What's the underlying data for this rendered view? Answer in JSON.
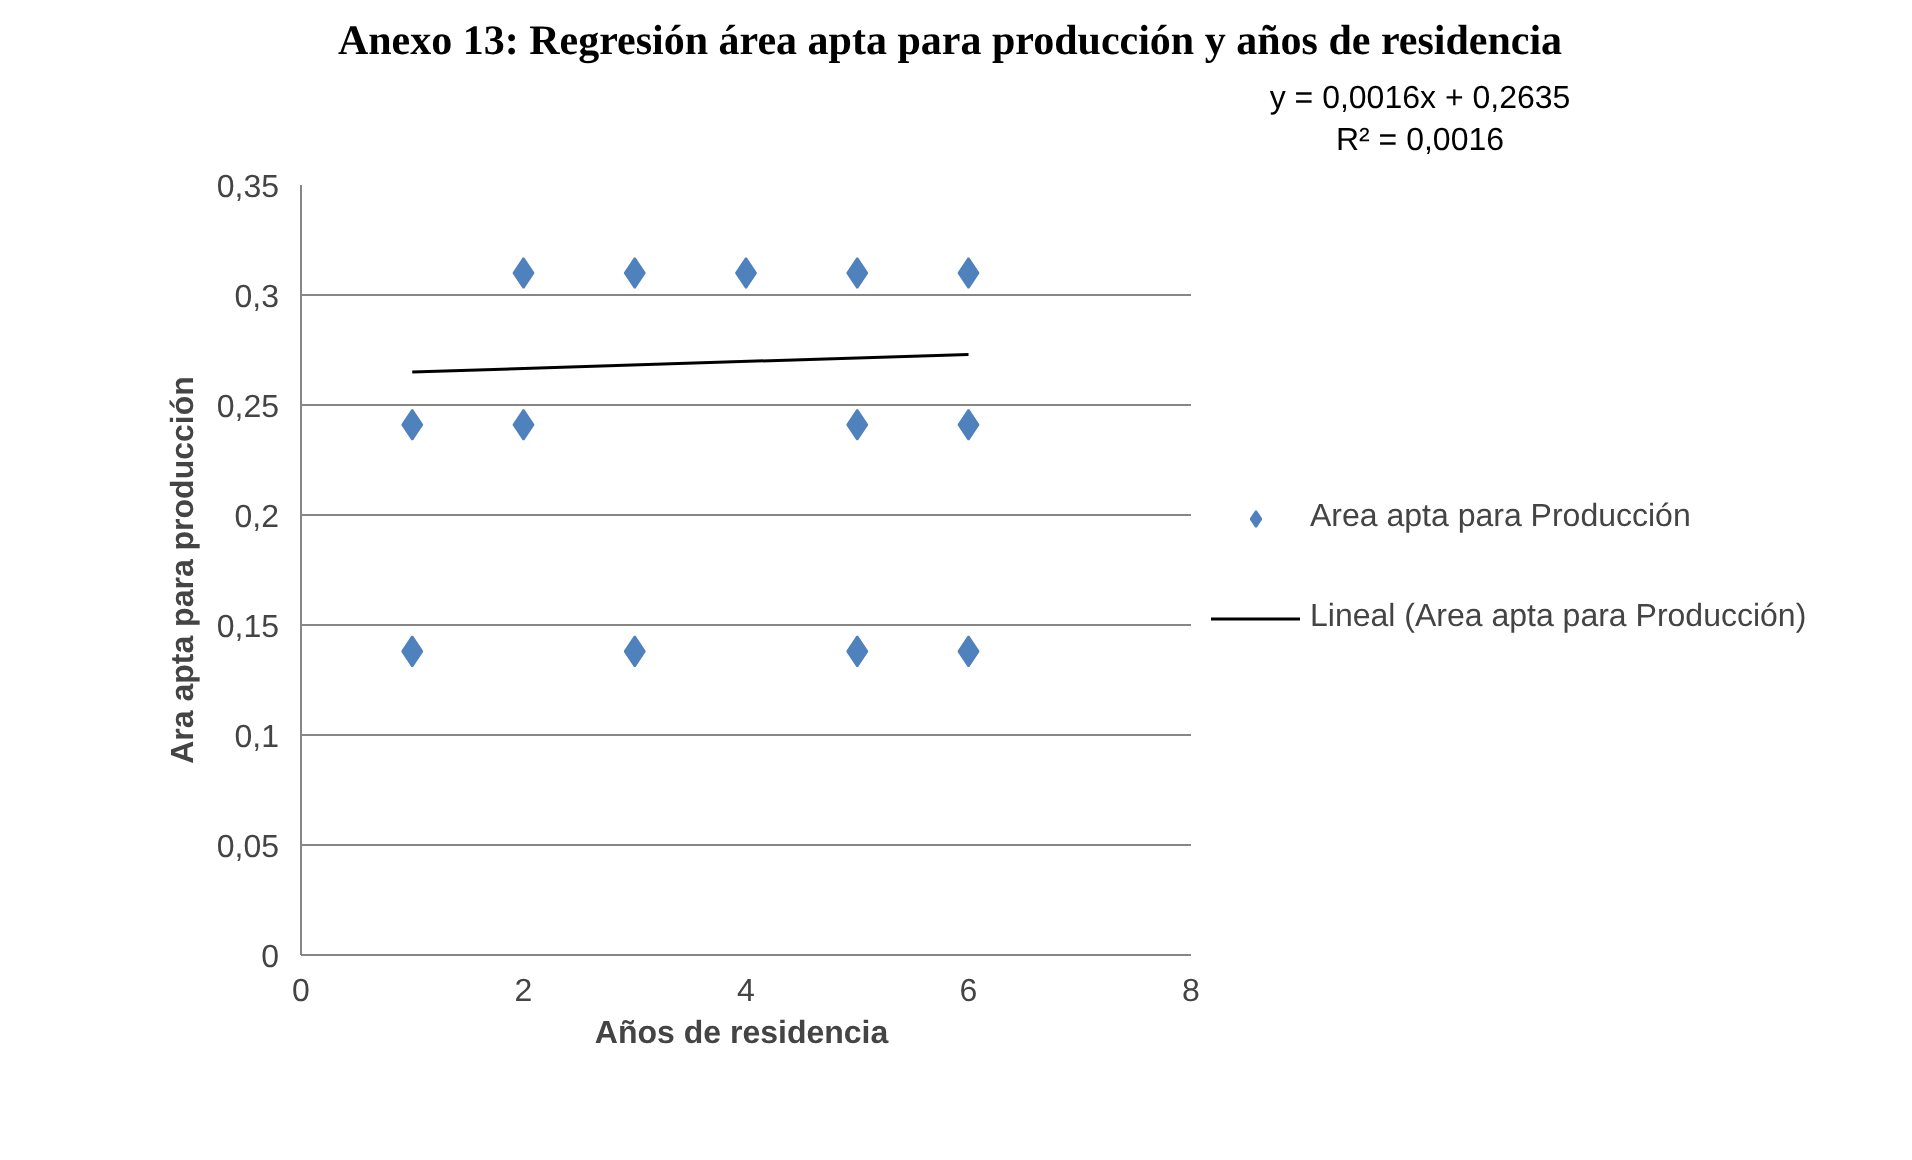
{
  "chart_data": {
    "type": "scatter",
    "title": "Anexo 13: Regresión área apta para producción y años de residencia",
    "xlabel": "Años  de residencia",
    "ylabel": "Ara apta para producción",
    "series": [
      {
        "name": "Area apta para Producción",
        "color": "#4f81bd",
        "marker": "diamond",
        "x": [
          1,
          1,
          2,
          2,
          3,
          3,
          4,
          5,
          5,
          5,
          6,
          6,
          6
        ],
        "values": [
          0.241,
          0.138,
          0.31,
          0.241,
          0.31,
          0.138,
          0.31,
          0.31,
          0.241,
          0.138,
          0.31,
          0.241,
          0.138
        ]
      },
      {
        "name": "Lineal (Area apta para Producción)",
        "color": "#000000",
        "type": "line",
        "marker": "none",
        "x": [
          1,
          6
        ],
        "values": [
          0.265,
          0.273
        ]
      }
    ],
    "annotations": [
      "y = 0,0016x + 0,2635\nR² = 0,0016"
    ],
    "xlim": [
      0,
      8
    ],
    "xticks": [
      0,
      2,
      4,
      6,
      8
    ],
    "ylim": [
      0,
      0.35
    ],
    "yticks": [
      0,
      {
        "value": 0.05,
        "label": "0,05"
      },
      {
        "value": 0.1,
        "label": "0,1"
      },
      {
        "value": 0.15,
        "label": "0,15"
      },
      {
        "value": 0.2,
        "label": "0,2"
      },
      {
        "value": 0.25,
        "label": "0,25"
      },
      {
        "value": 0.3,
        "label": "0,3"
      },
      {
        "value": 0.35,
        "label": "0,35"
      }
    ],
    "grid": "y",
    "legend": "right"
  }
}
